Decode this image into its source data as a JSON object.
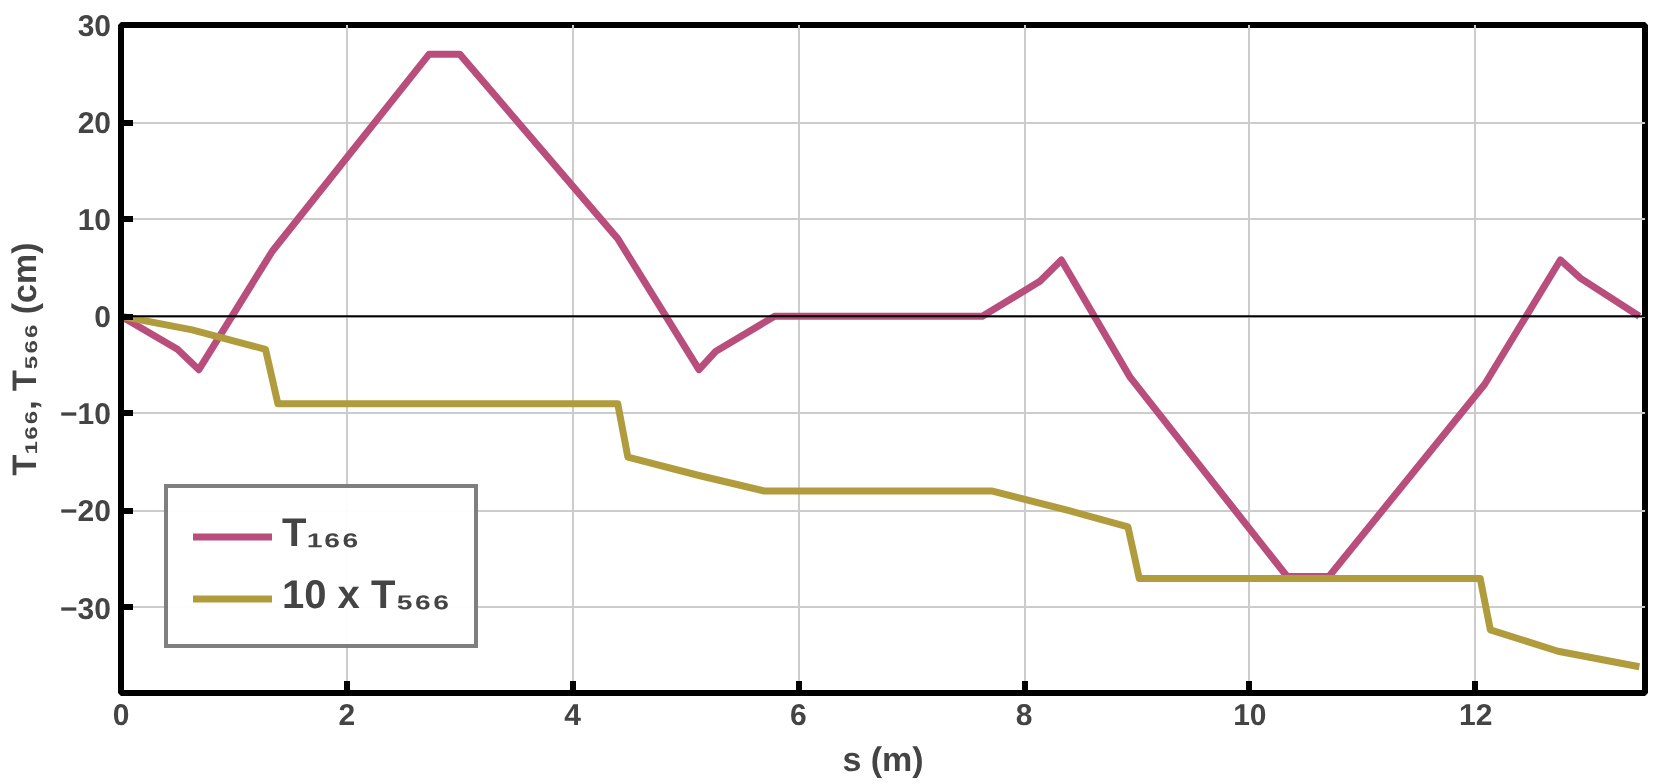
{
  "chart_data": {
    "type": "line",
    "xlabel": "s (m)",
    "ylabel": "T₁₆₆, T₅₆₆ (cm)",
    "xlim": [
      0,
      13.5
    ],
    "ylim": [
      -38.8,
      30
    ],
    "xticks": [
      0,
      2,
      4,
      6,
      8,
      10,
      12
    ],
    "yticks": [
      -30,
      -20,
      -10,
      0,
      10,
      20,
      30
    ],
    "grid": true,
    "legend": "bottom left",
    "line_style": "solid",
    "marker": "none",
    "ref_lines": [
      {
        "axis": "y",
        "value": 0,
        "color": "#000000"
      }
    ],
    "series": [
      {
        "name": "T₁₆₆",
        "color": "#b94d7c",
        "x": [
          0,
          0.5,
          0.69,
          1.34,
          2.73,
          3.0,
          4.4,
          5.12,
          5.27,
          5.79,
          7.63,
          8.14,
          8.33,
          8.94,
          10.33,
          10.7,
          12.08,
          12.75,
          12.93,
          13.45
        ],
        "values": [
          0,
          -3.4,
          -5.5,
          6.7,
          27,
          27,
          8,
          -5.5,
          -3.6,
          0,
          0,
          3.6,
          5.8,
          -6.3,
          -26.8,
          -26.8,
          -7,
          5.8,
          3.9,
          0
        ]
      },
      {
        "name": "10 x T₅₆₆",
        "color": "#b09c3c",
        "x": [
          0,
          0.63,
          1.28,
          1.39,
          4.4,
          4.49,
          5.12,
          5.7,
          7.72,
          8.39,
          8.92,
          9.02,
          12.04,
          12.13,
          12.73,
          13.45
        ],
        "values": [
          0,
          -1.4,
          -3.4,
          -9,
          -9,
          -14.5,
          -16.4,
          -18,
          -18,
          -20,
          -21.7,
          -27,
          -27,
          -32.3,
          -34.5,
          -36.1
        ]
      }
    ]
  }
}
